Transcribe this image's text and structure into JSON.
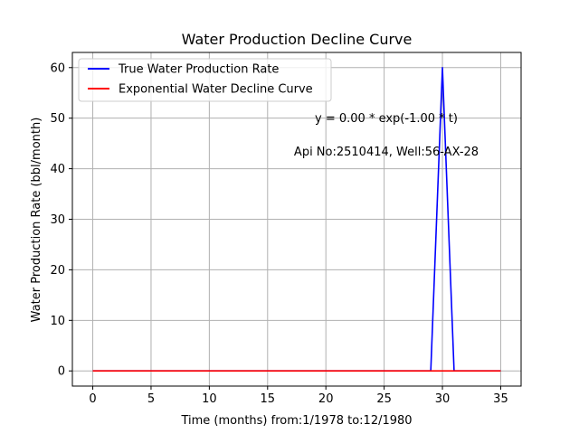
{
  "chart_data": {
    "type": "line",
    "title": "Water Production Decline Curve",
    "xlabel": "Time (months) from:1/1978 to:12/1980",
    "ylabel": "Water Production Rate (bbl/month)",
    "xlim": [
      -1.75,
      36.75
    ],
    "ylim": [
      -3,
      63
    ],
    "xticks": [
      0,
      5,
      10,
      15,
      20,
      25,
      30,
      35
    ],
    "yticks": [
      0,
      10,
      20,
      30,
      40,
      50,
      60
    ],
    "grid": true,
    "legend_position": "upper-left",
    "series": [
      {
        "name": "True Water Production Rate",
        "color": "#0000ff",
        "x": [
          0,
          1,
          2,
          3,
          4,
          5,
          6,
          7,
          8,
          9,
          10,
          11,
          12,
          13,
          14,
          15,
          16,
          17,
          18,
          19,
          20,
          21,
          22,
          23,
          24,
          25,
          26,
          27,
          28,
          29,
          30,
          31,
          32,
          33,
          34,
          35
        ],
        "y": [
          0,
          0,
          0,
          0,
          0,
          0,
          0,
          0,
          0,
          0,
          0,
          0,
          0,
          0,
          0,
          0,
          0,
          0,
          0,
          0,
          0,
          0,
          0,
          0,
          0,
          0,
          0,
          0,
          0,
          0,
          60,
          0,
          0,
          0,
          0,
          0
        ]
      },
      {
        "name": "Exponential Water Decline Curve",
        "color": "#ff0000",
        "x": [
          0,
          1,
          2,
          3,
          4,
          5,
          6,
          7,
          8,
          9,
          10,
          11,
          12,
          13,
          14,
          15,
          16,
          17,
          18,
          19,
          20,
          21,
          22,
          23,
          24,
          25,
          26,
          27,
          28,
          29,
          30,
          31,
          32,
          33,
          34,
          35
        ],
        "y": [
          0,
          0,
          0,
          0,
          0,
          0,
          0,
          0,
          0,
          0,
          0,
          0,
          0,
          0,
          0,
          0,
          0,
          0,
          0,
          0,
          0,
          0,
          0,
          0,
          0,
          0,
          0,
          0,
          0,
          0,
          0,
          0,
          0,
          0,
          0,
          0
        ]
      }
    ],
    "annotations": [
      {
        "text": "y = 0.00 * exp(-1.00 * t)",
        "x": 23.4,
        "y": 49.4
      },
      {
        "text": "Api No:2510414, Well:56-AX-28",
        "x": 23.4,
        "y": 42.8
      }
    ]
  }
}
